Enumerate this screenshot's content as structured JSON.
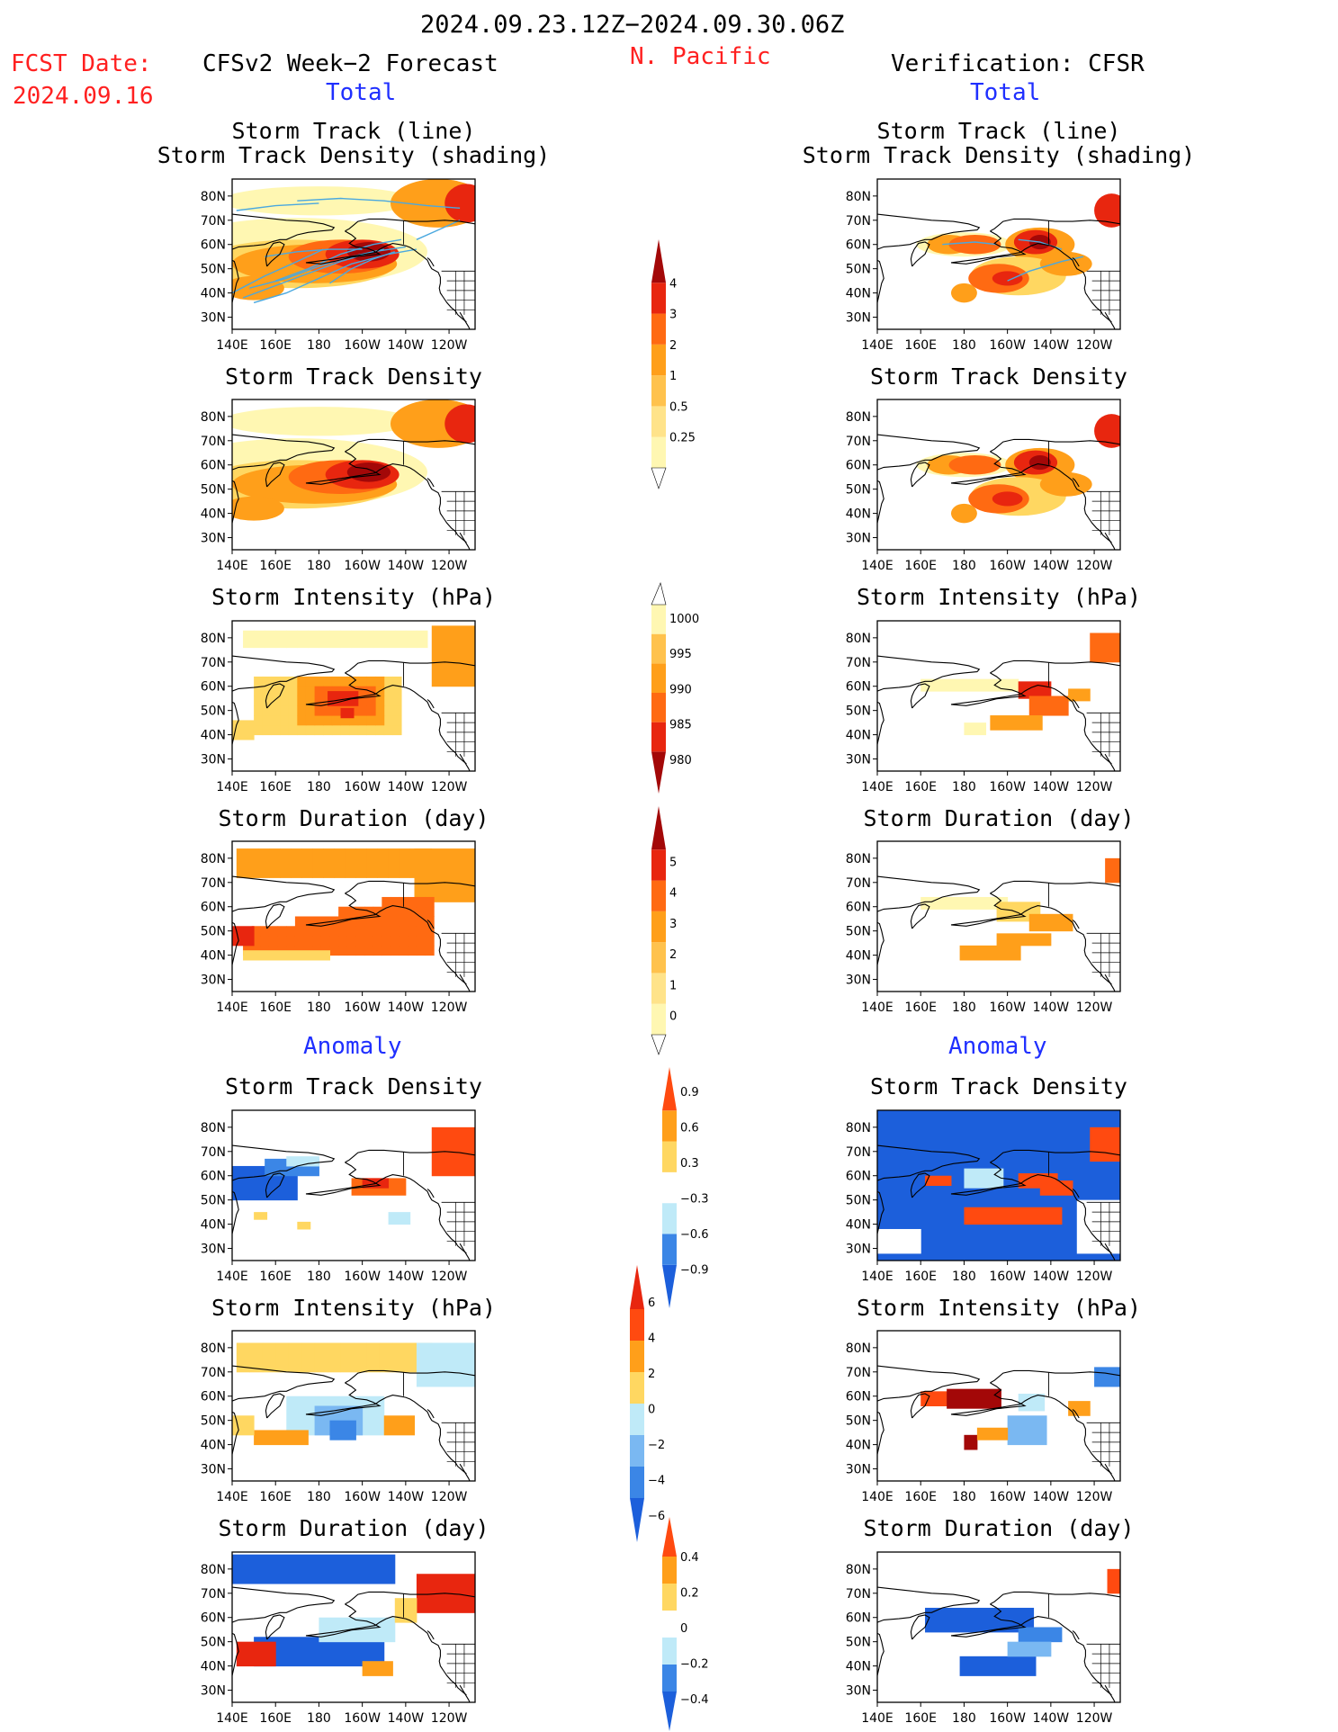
{
  "header": {
    "period": "2024.09.23.12Z−2024.09.30.06Z",
    "fcst_label": "FCST Date:",
    "fcst_date": "2024.09.16",
    "left_title": "CFSv2 Week−2 Forecast",
    "region": "N. Pacific",
    "right_title": "Verification: CFSR",
    "total_left": "Total",
    "total_right": "Total",
    "anomaly_left": "Anomaly",
    "anomaly_right": "Anomaly"
  },
  "panel_titles": {
    "track_line": "Storm Track (line)",
    "track_density_shading": "Storm Track Density (shading)",
    "track_density": "Storm Track Density",
    "intensity": "Storm Intensity (hPa)",
    "duration": "Storm Duration (day)"
  },
  "colors": {
    "light_yellow": "#fff7b2",
    "yellow": "#ffd761",
    "orange": "#ff9f1a",
    "dark_orange": "#ff6a12",
    "red": "#e8260f",
    "dark_red": "#a30808",
    "light_blue": "#bfeaf8",
    "mid_blue": "#7ab8f2",
    "blue": "#3b86e6",
    "dark_blue": "#1c5fdb",
    "track_line": "#4aa8df"
  },
  "chart_data": [
    {
      "type": "heatmap",
      "title": "Storm Track Density (shading)",
      "source": "CFSv2 Week−2 Forecast",
      "x_tick_labels": [
        "140E",
        "160E",
        "180",
        "160W",
        "140W",
        "120W"
      ],
      "y_tick_labels": [
        "30N",
        "40N",
        "50N",
        "60N",
        "70N",
        "80N"
      ],
      "colorbar": {
        "levels": [
          0.25,
          0.5,
          1,
          2,
          3,
          4
        ],
        "labels": [
          "0.25",
          "0.5",
          "1",
          "2",
          "3",
          "4"
        ]
      },
      "has_track_lines": true
    },
    {
      "type": "heatmap",
      "title": "Storm Intensity (hPa)",
      "colorbar": {
        "levels": [
          1000,
          995,
          990,
          985,
          980
        ],
        "labels": [
          "1000",
          "995",
          "990",
          "985",
          "980"
        ]
      }
    },
    {
      "type": "heatmap",
      "title": "Storm Duration (day)",
      "colorbar": {
        "levels": [
          0,
          1,
          2,
          3,
          4,
          5
        ],
        "labels": [
          "0",
          "1",
          "2",
          "3",
          "4",
          "5"
        ]
      }
    },
    {
      "type": "heatmap",
      "title": "Storm Track Density anomaly",
      "colorbar": {
        "levels": [
          -0.9,
          -0.6,
          -0.3,
          0.3,
          0.6,
          0.9
        ],
        "labels": [
          "−0.9",
          "−0.6",
          "−0.3",
          "0.3",
          "0.6",
          "0.9"
        ]
      }
    },
    {
      "type": "heatmap",
      "title": "Storm Intensity anomaly (hPa)",
      "colorbar": {
        "levels": [
          -6,
          -4,
          -2,
          0,
          2,
          4,
          6
        ],
        "labels": [
          "−6",
          "−4",
          "−2",
          "0",
          "2",
          "4",
          "6"
        ]
      }
    },
    {
      "type": "heatmap",
      "title": "Storm Duration anomaly (day)",
      "colorbar": {
        "levels": [
          -0.4,
          -0.2,
          0,
          0.2,
          0.4
        ],
        "labels": [
          "−0.4",
          "−0.2",
          "0",
          "0.2",
          "0.4"
        ]
      }
    }
  ],
  "axes": {
    "x_tick_labels": [
      "140E",
      "160E",
      "180",
      "160W",
      "140W",
      "120W"
    ],
    "y_tick_labels": [
      "80N",
      "70N",
      "60N",
      "50N",
      "40N",
      "30N"
    ]
  }
}
